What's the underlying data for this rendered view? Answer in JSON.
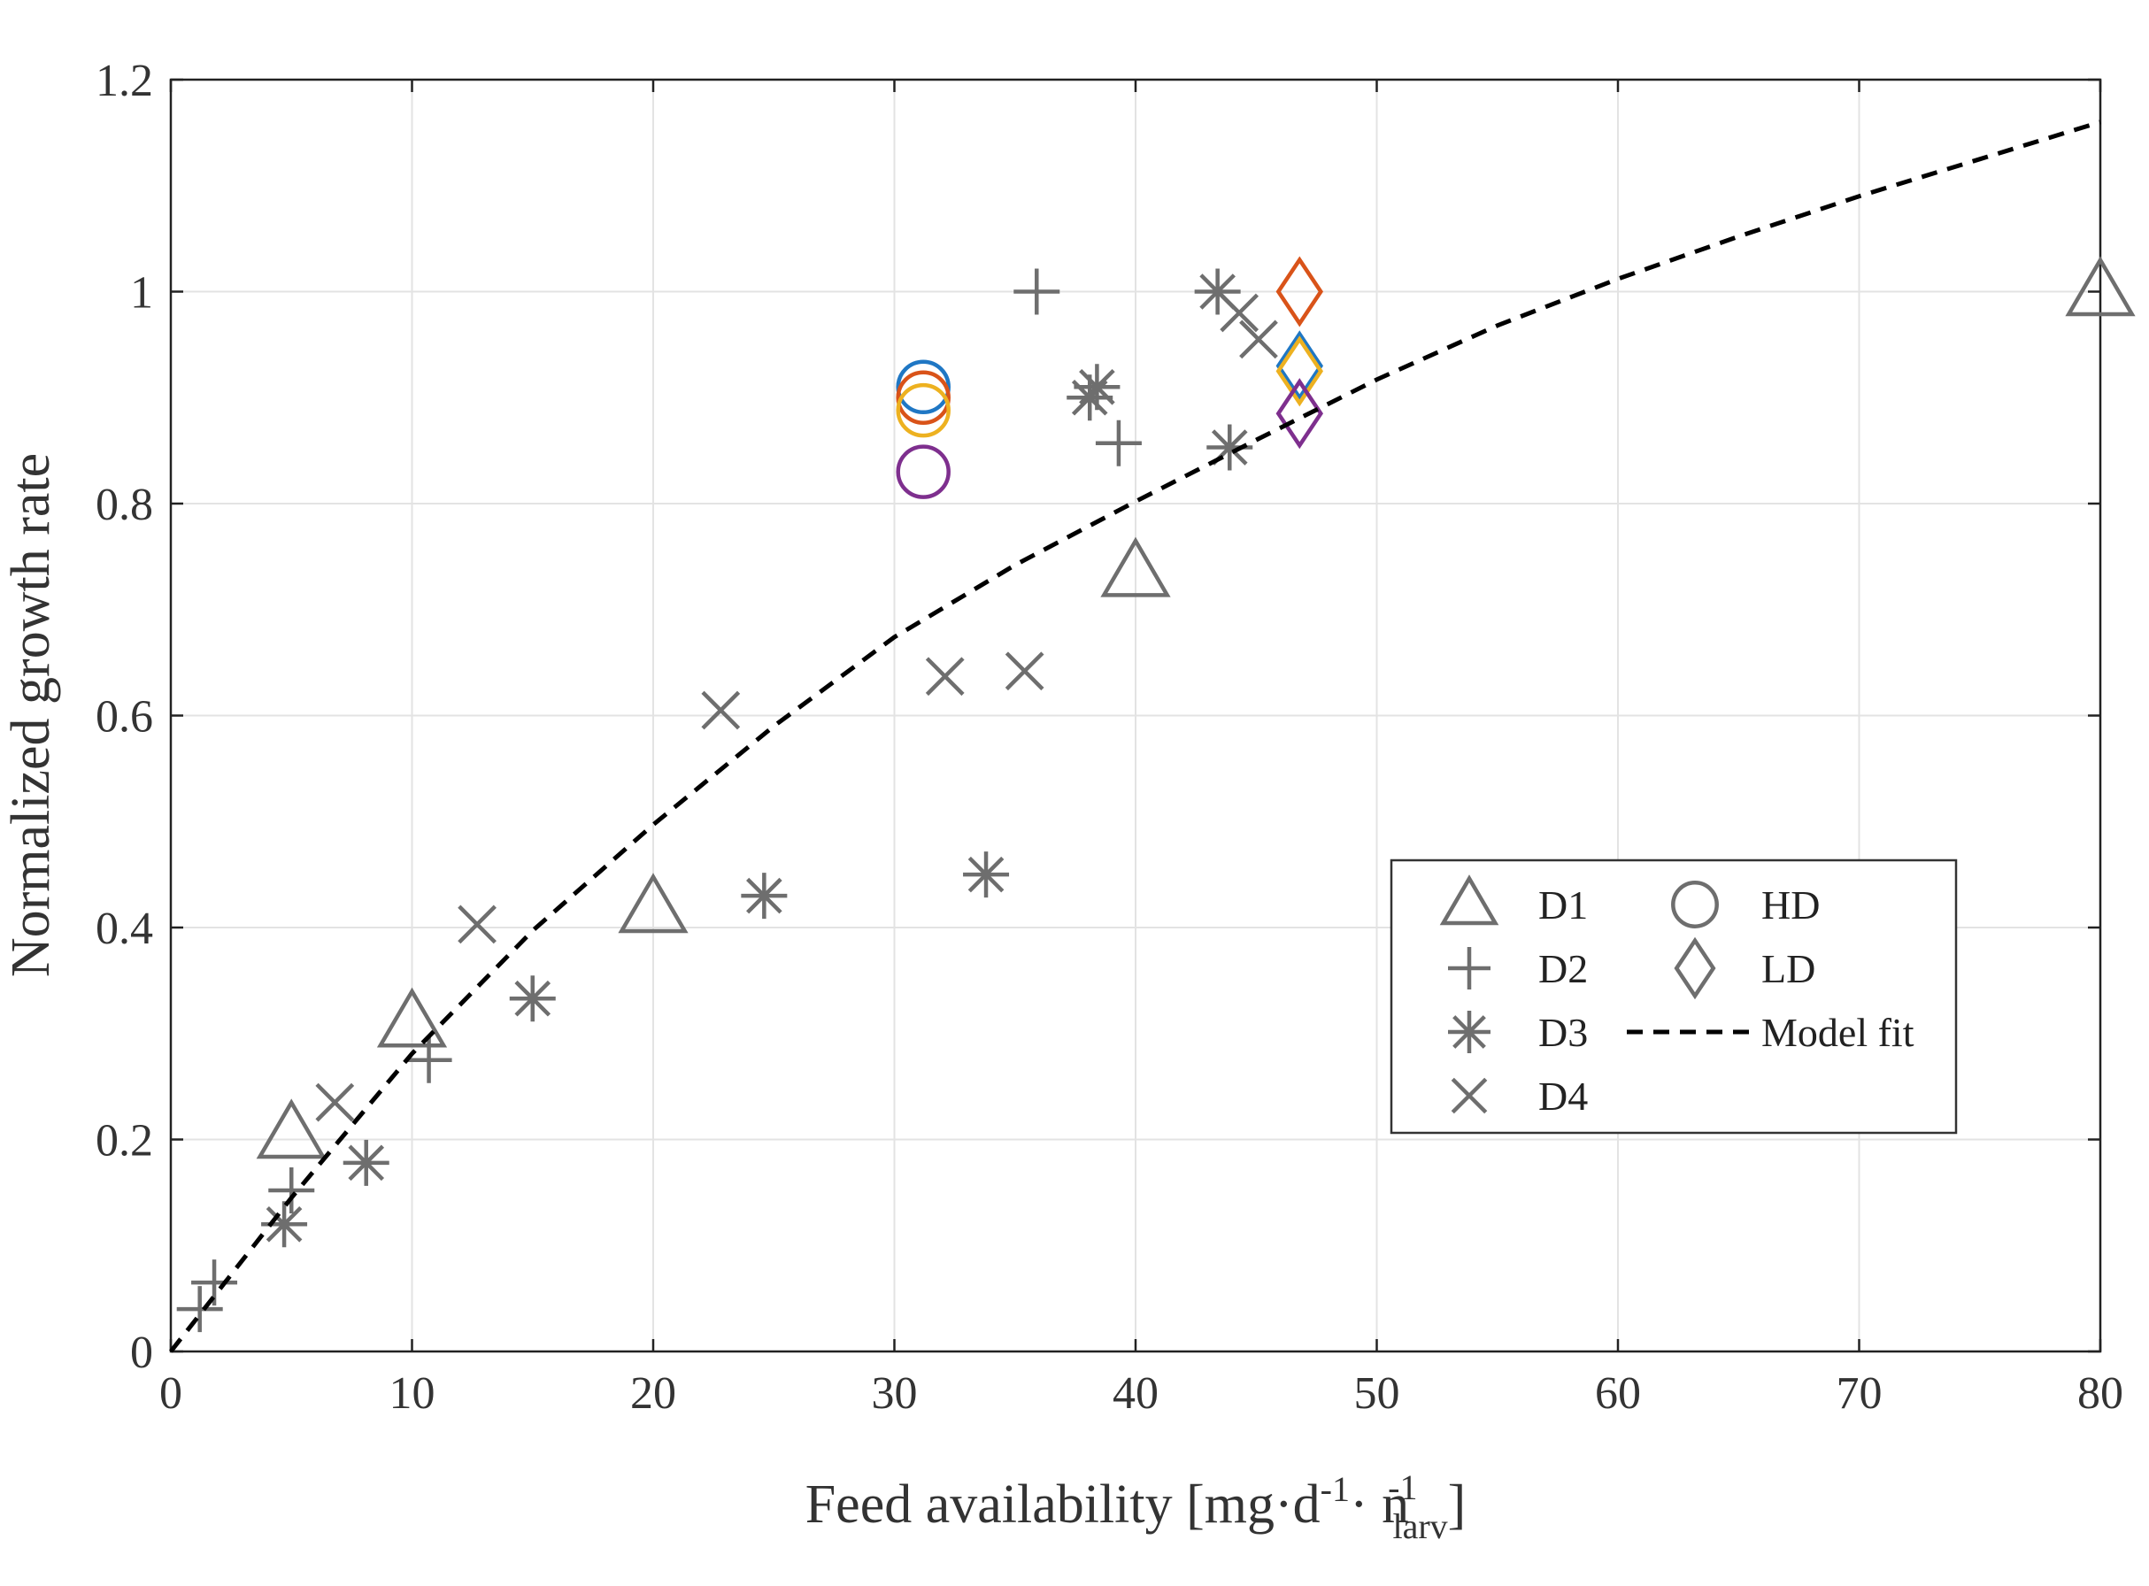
{
  "chart_data": {
    "type": "scatter",
    "title": "",
    "xlabel": {
      "main": "Feed availability [mg·d",
      "sup1": "-1",
      "mid": "· n",
      "sup2": "-1",
      "sub": "larv",
      "end": "]"
    },
    "ylabel": "Normalized growth rate",
    "xlim": [
      0,
      80
    ],
    "ylim": [
      0,
      1.2
    ],
    "xticks": [
      0,
      10,
      20,
      30,
      40,
      50,
      60,
      70,
      80
    ],
    "yticks": [
      0,
      0.2,
      0.4,
      0.6,
      0.8,
      1,
      1.2
    ],
    "xtick_labels": [
      "0",
      "10",
      "20",
      "30",
      "40",
      "50",
      "60",
      "70",
      "80"
    ],
    "ytick_labels": [
      "0",
      "0.2",
      "0.4",
      "0.6",
      "0.8",
      "1",
      "1.2"
    ],
    "grid": true,
    "legend_position": "center-right",
    "series": [
      {
        "name": "D1",
        "marker": "triangle",
        "color": "#6e6e6e",
        "points": [
          [
            5,
            0.205
          ],
          [
            10,
            0.31
          ],
          [
            20,
            0.418
          ],
          [
            40,
            0.735
          ],
          [
            80,
            1.0
          ]
        ]
      },
      {
        "name": "D2",
        "marker": "plus",
        "color": "#6e6e6e",
        "points": [
          [
            1.2,
            0.04
          ],
          [
            1.8,
            0.065
          ],
          [
            5,
            0.152
          ],
          [
            10.7,
            0.275
          ],
          [
            35.9,
            1.0
          ],
          [
            39.3,
            0.857
          ]
        ]
      },
      {
        "name": "D3",
        "marker": "asterisk",
        "color": "#6e6e6e",
        "points": [
          [
            4.7,
            0.12
          ],
          [
            8.1,
            0.178
          ],
          [
            15,
            0.333
          ],
          [
            24.6,
            0.43
          ],
          [
            33.8,
            0.45
          ],
          [
            38.1,
            0.9
          ],
          [
            38.4,
            0.91
          ],
          [
            43.4,
            1.0
          ],
          [
            43.9,
            0.853
          ]
        ]
      },
      {
        "name": "D4",
        "marker": "cross",
        "color": "#6e6e6e",
        "points": [
          [
            6.8,
            0.235
          ],
          [
            12.7,
            0.403
          ],
          [
            22.8,
            0.605
          ],
          [
            32.1,
            0.637
          ],
          [
            35.4,
            0.642
          ],
          [
            44.3,
            0.98
          ],
          [
            45.1,
            0.955
          ]
        ]
      },
      {
        "name": "HD",
        "marker": "circle",
        "color": "#6e6e6e",
        "points": [
          {
            "x": 31.2,
            "y": 0.91,
            "color": "#1f77c4"
          },
          {
            "x": 31.2,
            "y": 0.9,
            "color": "#d95319"
          },
          {
            "x": 31.2,
            "y": 0.888,
            "color": "#edb120"
          },
          {
            "x": 31.2,
            "y": 0.83,
            "color": "#7e2f8e"
          }
        ]
      },
      {
        "name": "LD",
        "marker": "diamond",
        "color": "#6e6e6e",
        "points": [
          {
            "x": 46.8,
            "y": 1.0,
            "color": "#d95319"
          },
          {
            "x": 46.8,
            "y": 0.93,
            "color": "#1f77c4"
          },
          {
            "x": 46.8,
            "y": 0.925,
            "color": "#edb120"
          },
          {
            "x": 46.8,
            "y": 0.885,
            "color": "#7e2f8e"
          }
        ]
      },
      {
        "name": "Model fit",
        "marker": "dashed-line",
        "color": "#000000",
        "x": [
          0,
          5,
          10,
          15,
          20,
          25,
          30,
          35,
          40,
          45,
          50,
          55,
          60,
          65,
          70,
          75,
          80
        ],
        "values": [
          0,
          0.145,
          0.281,
          0.397,
          0.497,
          0.59,
          0.674,
          0.742,
          0.802,
          0.86,
          0.917,
          0.968,
          1.012,
          1.052,
          1.09,
          1.125,
          1.16
        ]
      }
    ]
  }
}
